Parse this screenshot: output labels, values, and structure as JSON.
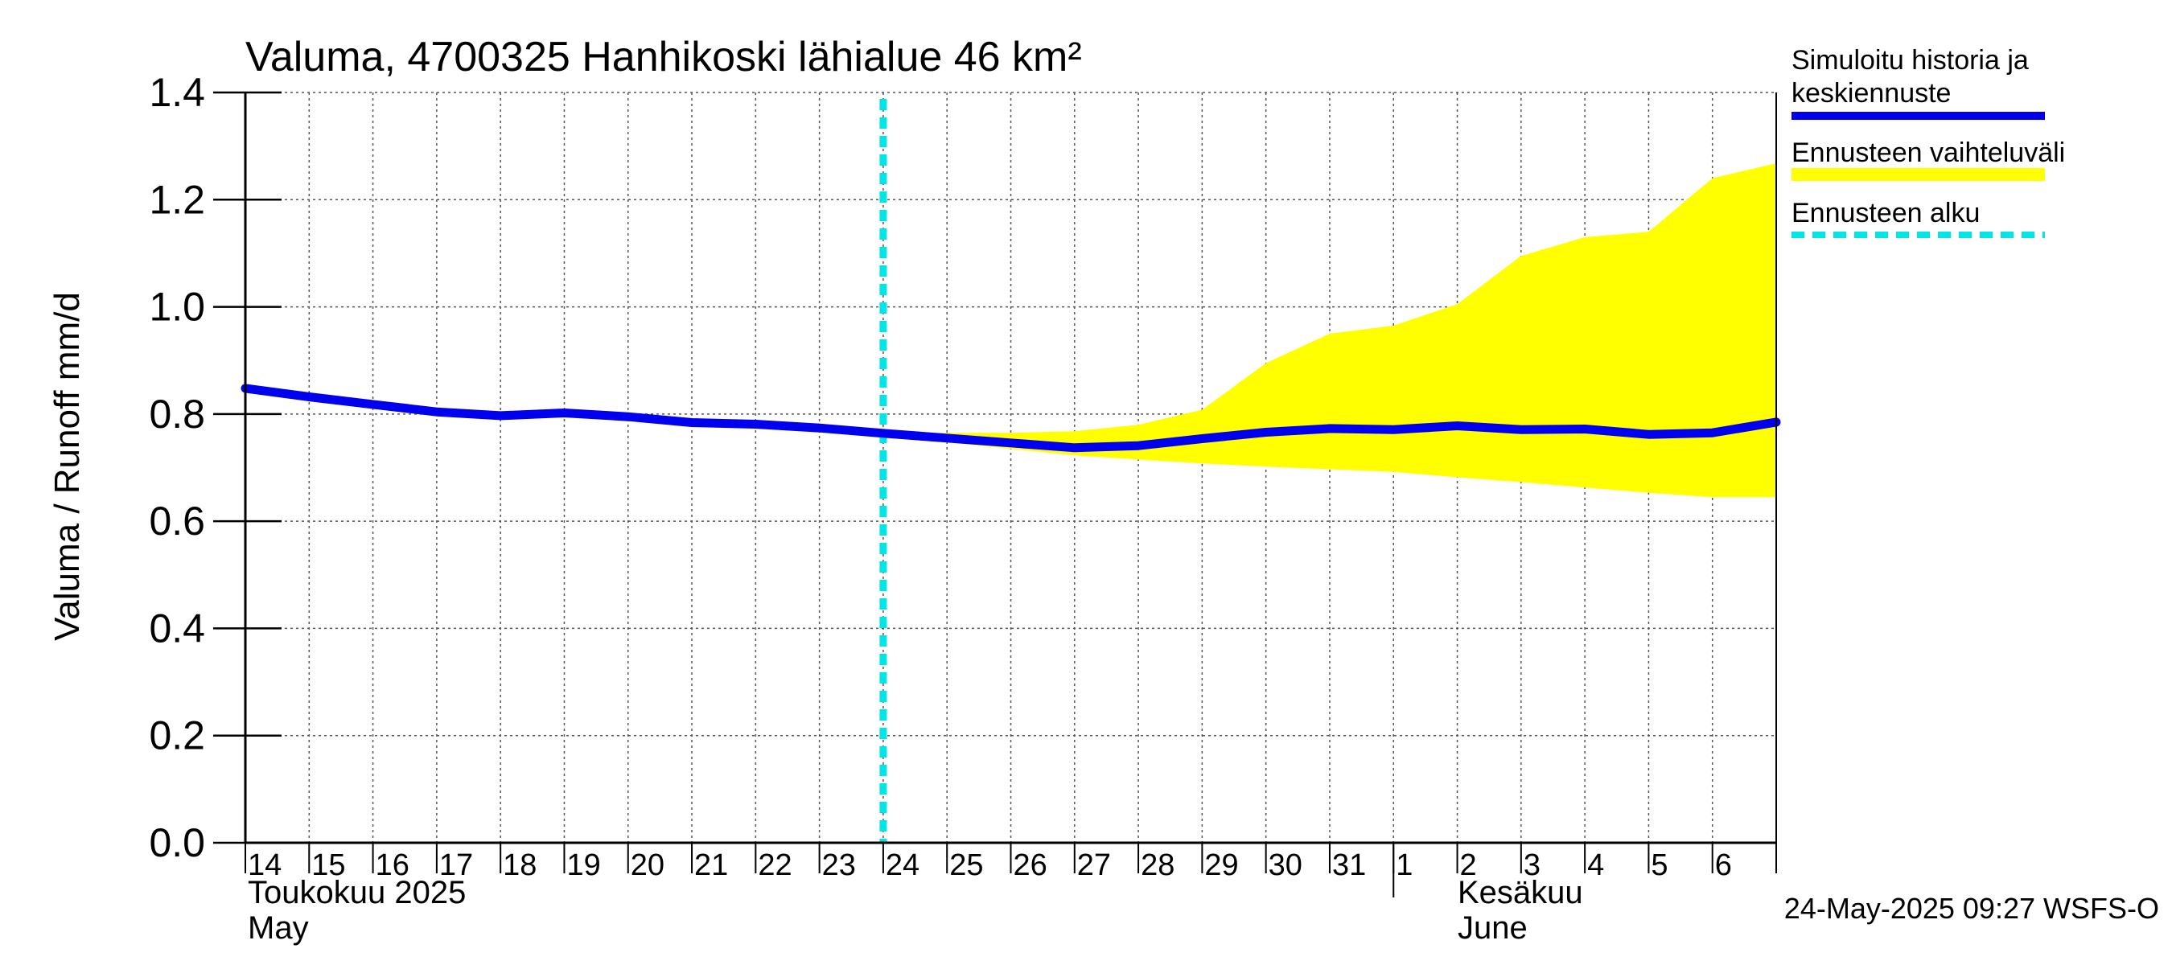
{
  "chart_data": {
    "type": "line",
    "title": "Valuma, 4700325 Hanhikoski lähialue 46 km²",
    "ylabel": "Valuma / Runoff     mm/d",
    "ylim": [
      0.0,
      1.4
    ],
    "yticks": [
      "0.0",
      "0.2",
      "0.4",
      "0.6",
      "0.8",
      "1.0",
      "1.2",
      "1.4"
    ],
    "grid": true,
    "x_range": [
      "2025-05-14",
      "2025-06-07"
    ],
    "x_day_labels": [
      {
        "date": "2025-05-14",
        "label": "14"
      },
      {
        "date": "2025-05-15",
        "label": "15"
      },
      {
        "date": "2025-05-16",
        "label": "16"
      },
      {
        "date": "2025-05-17",
        "label": "17"
      },
      {
        "date": "2025-05-18",
        "label": "18"
      },
      {
        "date": "2025-05-19",
        "label": "19"
      },
      {
        "date": "2025-05-20",
        "label": "20"
      },
      {
        "date": "2025-05-21",
        "label": "21"
      },
      {
        "date": "2025-05-22",
        "label": "22"
      },
      {
        "date": "2025-05-23",
        "label": "23"
      },
      {
        "date": "2025-05-24",
        "label": "24"
      },
      {
        "date": "2025-05-25",
        "label": "25"
      },
      {
        "date": "2025-05-26",
        "label": "26"
      },
      {
        "date": "2025-05-27",
        "label": "27"
      },
      {
        "date": "2025-05-28",
        "label": "28"
      },
      {
        "date": "2025-05-29",
        "label": "29"
      },
      {
        "date": "2025-05-30",
        "label": "30"
      },
      {
        "date": "2025-05-31",
        "label": "31"
      },
      {
        "date": "2025-06-01",
        "label": "1"
      },
      {
        "date": "2025-06-02",
        "label": "2"
      },
      {
        "date": "2025-06-03",
        "label": "3"
      },
      {
        "date": "2025-06-04",
        "label": "4"
      },
      {
        "date": "2025-06-05",
        "label": "5"
      },
      {
        "date": "2025-06-06",
        "label": "6"
      }
    ],
    "month_labels": {
      "may_fi": "Toukokuu  2025",
      "may_en": "May",
      "june_fi": "Kesäkuu",
      "june_en": "June"
    },
    "month_boundary": "2025-06-01",
    "forecast_start": "2025-05-24",
    "series": [
      {
        "name": "Simuloitu historia ja keskiennuste",
        "color": "#0000ee",
        "x": [
          "2025-05-14",
          "2025-05-15",
          "2025-05-16",
          "2025-05-17",
          "2025-05-18",
          "2025-05-19",
          "2025-05-20",
          "2025-05-21",
          "2025-05-22",
          "2025-05-23",
          "2025-05-24",
          "2025-05-25",
          "2025-05-26",
          "2025-05-27",
          "2025-05-28",
          "2025-05-29",
          "2025-05-30",
          "2025-05-31",
          "2025-06-01",
          "2025-06-02",
          "2025-06-03",
          "2025-06-04",
          "2025-06-05",
          "2025-06-06",
          "2025-06-07"
        ],
        "y": [
          0.848,
          0.832,
          0.818,
          0.804,
          0.797,
          0.802,
          0.795,
          0.784,
          0.781,
          0.774,
          0.764,
          0.755,
          0.746,
          0.737,
          0.741,
          0.754,
          0.766,
          0.773,
          0.771,
          0.778,
          0.771,
          0.772,
          0.762,
          0.765,
          0.785
        ]
      },
      {
        "name": "Ennusteen vaihteluväli",
        "type": "area",
        "color": "#ffff00",
        "x": [
          "2025-05-24",
          "2025-05-25",
          "2025-05-26",
          "2025-05-27",
          "2025-05-28",
          "2025-05-29",
          "2025-05-30",
          "2025-05-31",
          "2025-06-01",
          "2025-06-02",
          "2025-06-03",
          "2025-06-04",
          "2025-06-05",
          "2025-06-06",
          "2025-06-07"
        ],
        "upper": [
          0.765,
          0.765,
          0.765,
          0.768,
          0.78,
          0.808,
          0.895,
          0.95,
          0.965,
          1.005,
          1.095,
          1.13,
          1.14,
          1.24,
          1.268
        ],
        "lower": [
          0.764,
          0.748,
          0.735,
          0.723,
          0.715,
          0.708,
          0.702,
          0.697,
          0.692,
          0.682,
          0.673,
          0.663,
          0.653,
          0.645,
          0.645
        ]
      },
      {
        "name": "Ennusteen alku",
        "type": "vline",
        "color": "#00e5e5",
        "x": "2025-05-24"
      }
    ],
    "legend_position": "right",
    "footer": "24-May-2025 09:27 WSFS-O"
  }
}
